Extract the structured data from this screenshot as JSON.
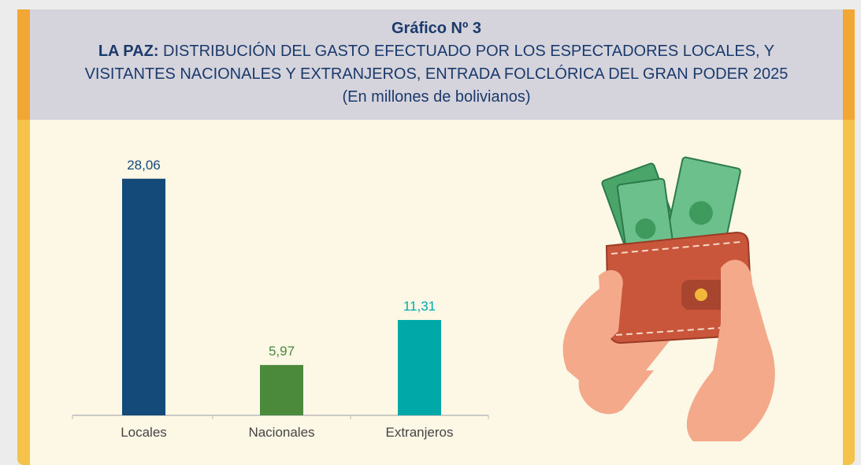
{
  "chart_data": {
    "type": "bar",
    "heading": "Gráfico Nº 3",
    "title_prefix": "LA PAZ:",
    "title": [
      "DISTRIBUCIÓN DEL GASTO EFECTUADO POR LOS ESPECTADORES LOCALES, Y",
      "VISITANTES NACIONALES Y EXTRANJEROS, ENTRADA FOLCLÓRICA DEL GRAN PODER 2025"
    ],
    "subtitle": "(En millones de bolivianos)",
    "categories": [
      "Locales",
      "Nacionales",
      "Extranjeros"
    ],
    "values": [
      28.06,
      5.97,
      11.31
    ],
    "value_labels": [
      "28,06",
      "5,97",
      "11,31"
    ],
    "colors": [
      "#144a7a",
      "#4a8a3a",
      "#00a9a8"
    ],
    "ylim": [
      0,
      30
    ]
  }
}
